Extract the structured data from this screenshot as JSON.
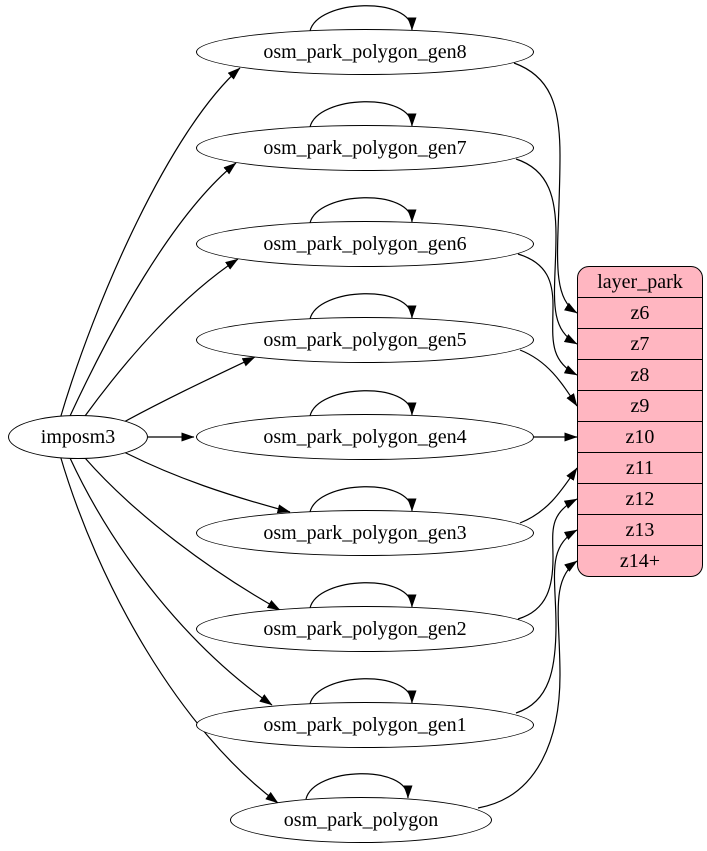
{
  "diagram": {
    "type": "graphviz-flow",
    "colors": {
      "background": "#ffffff",
      "edge_stroke": "#000000",
      "node_fill": "#ffffff",
      "node_stroke": "#000000",
      "layer_fill": "#ffb6c1",
      "text": "#000000"
    },
    "source": {
      "label": "imposm3"
    },
    "tables": [
      {
        "label": "osm_park_polygon_gen8",
        "self_loop": true,
        "output_zoom": "z6"
      },
      {
        "label": "osm_park_polygon_gen7",
        "self_loop": true,
        "output_zoom": "z7"
      },
      {
        "label": "osm_park_polygon_gen6",
        "self_loop": true,
        "output_zoom": "z8"
      },
      {
        "label": "osm_park_polygon_gen5",
        "self_loop": true,
        "output_zoom": "z9"
      },
      {
        "label": "osm_park_polygon_gen4",
        "self_loop": true,
        "output_zoom": "z10"
      },
      {
        "label": "osm_park_polygon_gen3",
        "self_loop": true,
        "output_zoom": "z11"
      },
      {
        "label": "osm_park_polygon_gen2",
        "self_loop": true,
        "output_zoom": "z12"
      },
      {
        "label": "osm_park_polygon_gen1",
        "self_loop": true,
        "output_zoom": "z13"
      },
      {
        "label": "osm_park_polygon",
        "self_loop": true,
        "output_zoom": "z14+"
      }
    ],
    "layer": {
      "title": "layer_park",
      "rows": [
        "z6",
        "z7",
        "z8",
        "z9",
        "z10",
        "z11",
        "z12",
        "z13",
        "z14+"
      ]
    },
    "edges": [
      {
        "from": "imposm3",
        "to": "osm_park_polygon_gen8"
      },
      {
        "from": "imposm3",
        "to": "osm_park_polygon_gen7"
      },
      {
        "from": "imposm3",
        "to": "osm_park_polygon_gen6"
      },
      {
        "from": "imposm3",
        "to": "osm_park_polygon_gen5"
      },
      {
        "from": "imposm3",
        "to": "osm_park_polygon_gen4"
      },
      {
        "from": "imposm3",
        "to": "osm_park_polygon_gen3"
      },
      {
        "from": "imposm3",
        "to": "osm_park_polygon_gen2"
      },
      {
        "from": "imposm3",
        "to": "osm_park_polygon_gen1"
      },
      {
        "from": "imposm3",
        "to": "osm_park_polygon"
      },
      {
        "from": "osm_park_polygon_gen8",
        "to": "osm_park_polygon_gen8"
      },
      {
        "from": "osm_park_polygon_gen7",
        "to": "osm_park_polygon_gen7"
      },
      {
        "from": "osm_park_polygon_gen6",
        "to": "osm_park_polygon_gen6"
      },
      {
        "from": "osm_park_polygon_gen5",
        "to": "osm_park_polygon_gen5"
      },
      {
        "from": "osm_park_polygon_gen4",
        "to": "osm_park_polygon_gen4"
      },
      {
        "from": "osm_park_polygon_gen3",
        "to": "osm_park_polygon_gen3"
      },
      {
        "from": "osm_park_polygon_gen2",
        "to": "osm_park_polygon_gen2"
      },
      {
        "from": "osm_park_polygon_gen1",
        "to": "osm_park_polygon_gen1"
      },
      {
        "from": "osm_park_polygon",
        "to": "osm_park_polygon"
      },
      {
        "from": "osm_park_polygon_gen8",
        "to": "layer_park.z6"
      },
      {
        "from": "osm_park_polygon_gen7",
        "to": "layer_park.z7"
      },
      {
        "from": "osm_park_polygon_gen6",
        "to": "layer_park.z8"
      },
      {
        "from": "osm_park_polygon_gen5",
        "to": "layer_park.z9"
      },
      {
        "from": "osm_park_polygon_gen4",
        "to": "layer_park.z10"
      },
      {
        "from": "osm_park_polygon_gen3",
        "to": "layer_park.z11"
      },
      {
        "from": "osm_park_polygon_gen2",
        "to": "layer_park.z12"
      },
      {
        "from": "osm_park_polygon_gen1",
        "to": "layer_park.z13"
      },
      {
        "from": "osm_park_polygon",
        "to": "layer_park.z14+"
      }
    ]
  }
}
